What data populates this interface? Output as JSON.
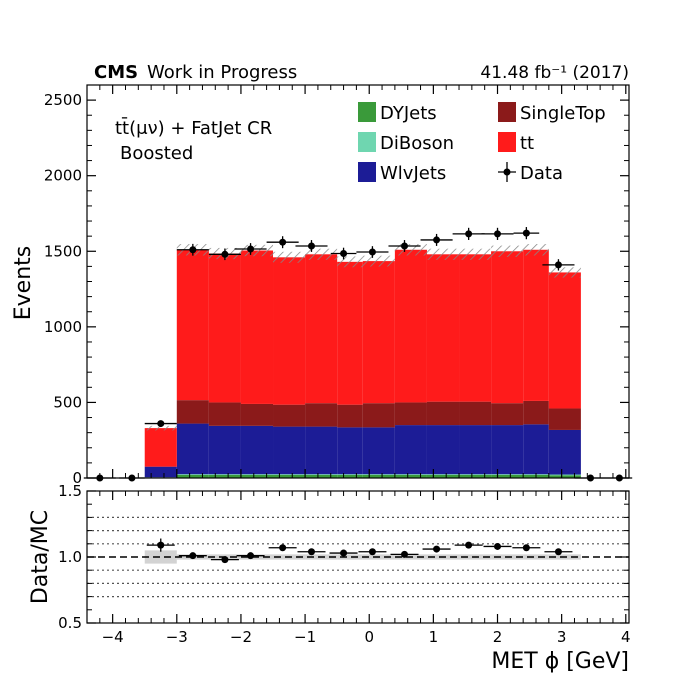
{
  "header": {
    "cms_label": "CMS",
    "cms_sublabel": "Work in Progress",
    "lumi_label": "41.48 fb⁻¹ (2017)"
  },
  "annotation": {
    "line1": "tt̄(μν) + FatJet CR",
    "line2": "Boosted"
  },
  "chart_data": {
    "type": "bar",
    "stacked": true,
    "bin_edges": [
      -4.4,
      -3.9,
      -3.5,
      -3.0,
      -2.5,
      -2.0,
      -1.5,
      -1.0,
      -0.5,
      -0.1,
      0.4,
      0.9,
      1.4,
      1.9,
      2.4,
      2.8,
      3.3,
      3.8,
      4.2
    ],
    "series": [
      {
        "name": "DYJets",
        "color": "#3a9a3a",
        "values": [
          0,
          0,
          3,
          20,
          20,
          20,
          20,
          20,
          20,
          20,
          20,
          20,
          20,
          20,
          20,
          18,
          0,
          0
        ]
      },
      {
        "name": "DiBoson",
        "color": "#6fd6b0",
        "values": [
          0,
          0,
          2,
          5,
          5,
          5,
          5,
          5,
          5,
          5,
          5,
          5,
          5,
          5,
          5,
          5,
          0,
          0
        ]
      },
      {
        "name": "WlvJets",
        "color": "#1c1c96",
        "values": [
          0,
          0,
          70,
          335,
          320,
          320,
          315,
          315,
          310,
          310,
          325,
          325,
          325,
          325,
          330,
          295,
          0,
          0
        ]
      },
      {
        "name": "SingleTop",
        "color": "#8b1a1a",
        "values": [
          0,
          0,
          0,
          155,
          155,
          145,
          145,
          155,
          150,
          160,
          150,
          155,
          155,
          145,
          155,
          142,
          0,
          0
        ]
      },
      {
        "name": "tt",
        "color": "#ff1b1b",
        "values": [
          0,
          0,
          255,
          995,
          985,
          1015,
          975,
          985,
          945,
          940,
          1010,
          975,
          975,
          1005,
          1000,
          900,
          0,
          0
        ]
      }
    ],
    "data": {
      "name": "Data",
      "x": [
        -4.2,
        -3.7,
        -3.25,
        -2.75,
        -2.25,
        -1.85,
        -1.35,
        -0.9,
        -0.4,
        0.05,
        0.55,
        1.05,
        1.55,
        2.0,
        2.45,
        2.95,
        3.45,
        3.9
      ],
      "y": [
        0,
        0,
        360,
        1510,
        1480,
        1515,
        1560,
        1535,
        1485,
        1495,
        1535,
        1575,
        1615,
        1615,
        1620,
        1410,
        0,
        0
      ]
    },
    "xlabel": "MET ϕ [GeV]",
    "ylabel": "Events",
    "xlim": [
      -4.4,
      4.05
    ],
    "ylim": [
      0,
      2600
    ],
    "xticks": [
      -4,
      -3,
      -2,
      -1,
      0,
      1,
      2,
      3,
      4
    ],
    "yticks": [
      0,
      500,
      1000,
      1500,
      2000,
      2500
    ],
    "legend_position": "top-right",
    "ratio": {
      "ylabel": "Data/MC",
      "ylim": [
        0.5,
        1.5
      ],
      "yticks": [
        "0.5",
        "1.0",
        "1.5"
      ],
      "dotted_lines": [
        0.7,
        0.8,
        0.9,
        1.1,
        1.2,
        1.3
      ],
      "x": [
        -3.25,
        -2.75,
        -2.25,
        -1.85,
        -1.35,
        -0.9,
        -0.4,
        0.05,
        0.55,
        1.05,
        1.55,
        2.0,
        2.45,
        2.95
      ],
      "values": [
        1.09,
        1.01,
        0.98,
        1.01,
        1.07,
        1.04,
        1.03,
        1.04,
        1.02,
        1.06,
        1.09,
        1.08,
        1.07,
        1.04
      ],
      "errors": [
        0.05,
        0.02,
        0.02,
        0.02,
        0.02,
        0.02,
        0.02,
        0.02,
        0.02,
        0.02,
        0.02,
        0.02,
        0.02,
        0.02
      ]
    }
  }
}
